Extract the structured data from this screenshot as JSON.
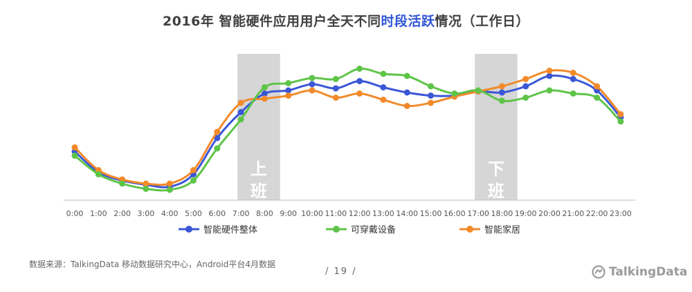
{
  "title": {
    "prefix": "2016年 智能硬件应用用户全天不同",
    "highlight": "时段活跃",
    "suffix": "情况（工作日）"
  },
  "source": "数据来源：TalkingData 移动数据研究中心，Android平台4月数据",
  "page_number": "/ 19 /",
  "logo_text": "TalkingData",
  "chart_data": {
    "type": "line",
    "categories": [
      "0:00",
      "1:00",
      "2:00",
      "3:00",
      "4:00",
      "5:00",
      "6:00",
      "7:00",
      "8:00",
      "9:00",
      "10:00",
      "11:00",
      "12:00",
      "13:00",
      "14:00",
      "15:00",
      "16:00",
      "17:00",
      "18:00",
      "19:00",
      "20:00",
      "21:00",
      "22:00",
      "23:00"
    ],
    "series": [
      {
        "name": "智能硬件整体",
        "color": "#3a57d6",
        "values": [
          47,
          27,
          19,
          15,
          13,
          25,
          60,
          85,
          103,
          106,
          112,
          108,
          115,
          109,
          104,
          101,
          101,
          105,
          104,
          110,
          120,
          117,
          106,
          80
        ]
      },
      {
        "name": "可穿戴设备",
        "color": "#5ec448",
        "values": [
          43,
          25,
          16,
          11,
          10,
          19,
          50,
          78,
          109,
          113,
          118,
          117,
          127,
          122,
          120,
          110,
          103,
          106,
          96,
          99,
          106,
          103,
          99,
          76
        ]
      },
      {
        "name": "智能家居",
        "color": "#f28a2a",
        "values": [
          51,
          29,
          20,
          16,
          16,
          29,
          66,
          94,
          98,
          101,
          106,
          99,
          103,
          97,
          91,
          94,
          100,
          105,
          110,
          117,
          125,
          123,
          110,
          83
        ]
      }
    ],
    "highlight_bands": [
      {
        "from": "7:00",
        "to": "9:00",
        "label_lines": [
          "上",
          "班"
        ],
        "color": "#d6d6d6"
      },
      {
        "from": "17:00",
        "to": "19:00",
        "label_lines": [
          "下",
          "班"
        ],
        "color": "#d6d6d6"
      }
    ],
    "axis_color": "#bfbfbf",
    "grid": false,
    "legend_position": "bottom"
  }
}
